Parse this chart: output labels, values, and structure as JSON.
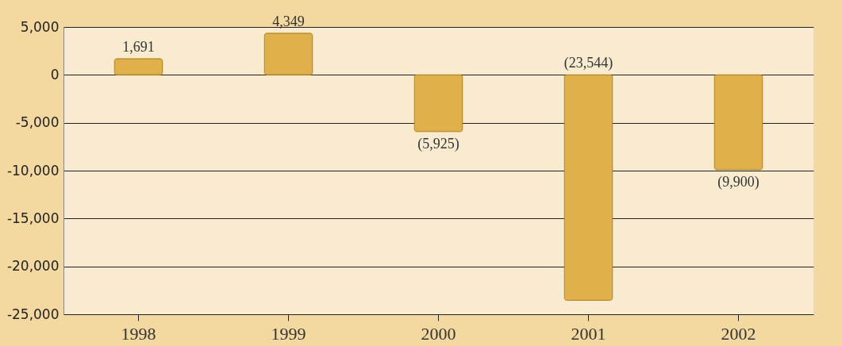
{
  "chart_data": {
    "type": "bar",
    "categories": [
      "1998",
      "1999",
      "2000",
      "2001",
      "2002"
    ],
    "values": [
      1691,
      4349,
      -5925,
      -23544,
      -9900
    ],
    "value_labels": [
      "1,691",
      "4,349",
      "(5,925)",
      "(23,544)",
      "(9,900)"
    ],
    "color": "#e0b04a",
    "ylim": [
      -25000,
      5000
    ],
    "yticks": [
      {
        "value": 5000,
        "label": "5,000"
      },
      0,
      {
        "value": -5000,
        "label": "-5,000"
      },
      {
        "value": -10000,
        "label": "-10,000"
      },
      {
        "value": -15000,
        "label": "-15,000"
      },
      {
        "value": -20000,
        "label": "-20,000"
      },
      {
        "value": -25000,
        "label": "-25,000"
      }
    ],
    "grid": "y"
  }
}
